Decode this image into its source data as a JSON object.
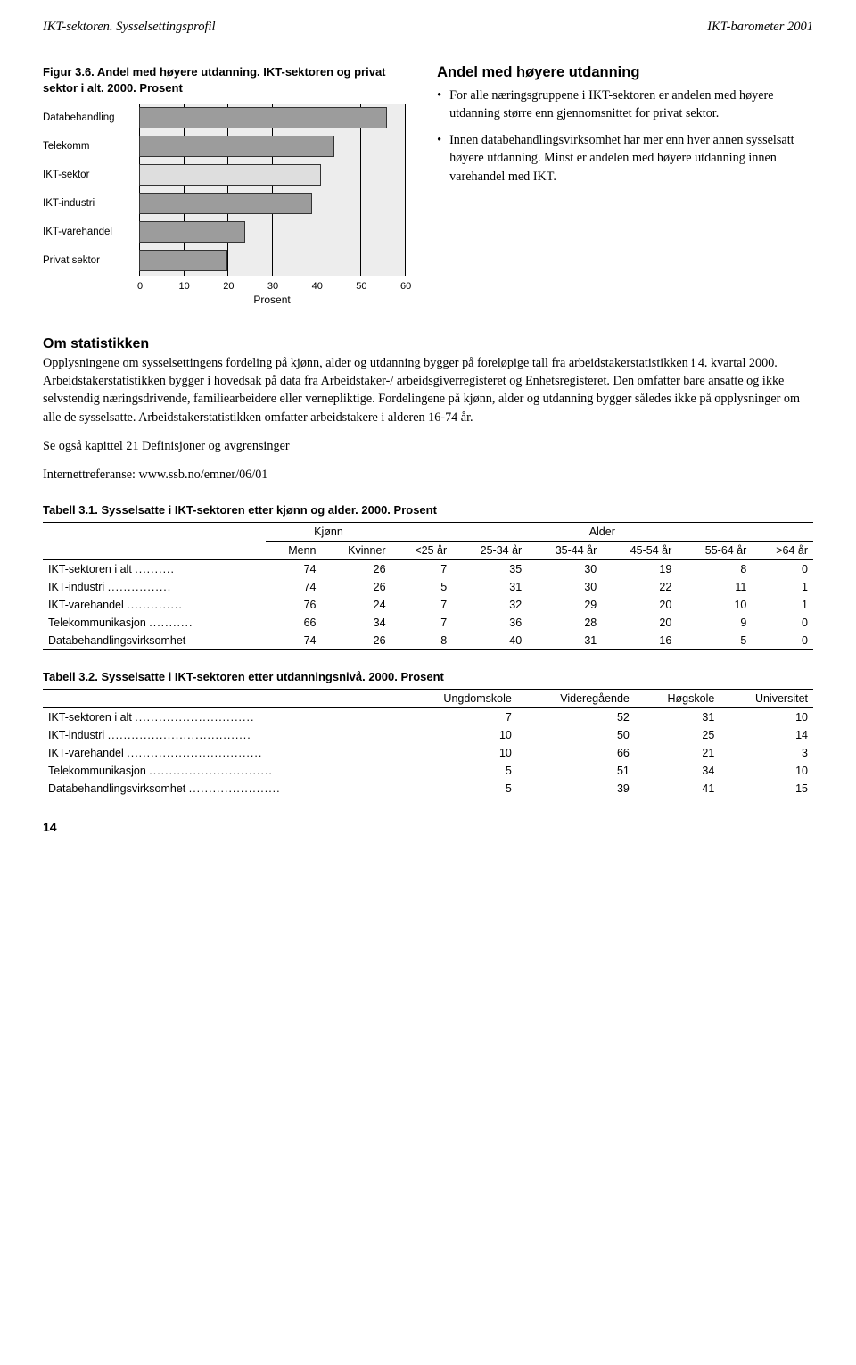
{
  "header": {
    "left": "IKT-sektoren. Sysselsettingsprofil",
    "right": "IKT-barometer 2001"
  },
  "figure": {
    "caption_bold": "Figur 3.6. Andel med høyere utdanning. IKT-sektoren og privat sektor i alt. 2000. Prosent",
    "axis_label": "Prosent",
    "xmax": 60,
    "xtick_step": 10,
    "background_color": "#ededed",
    "tick_color": "#000000",
    "bar_border": "#333333",
    "bars": [
      {
        "label": "Databehandling",
        "value": 56,
        "color": "#9c9c9c"
      },
      {
        "label": "Telekomm",
        "value": 44,
        "color": "#9c9c9c"
      },
      {
        "label": "IKT-sektor",
        "value": 41,
        "color": "#dedede"
      },
      {
        "label": "IKT-industri",
        "value": 39,
        "color": "#9c9c9c"
      },
      {
        "label": "IKT-varehandel",
        "value": 24,
        "color": "#9c9c9c"
      },
      {
        "label": "Privat sektor",
        "value": 20,
        "color": "#9c9c9c"
      }
    ]
  },
  "right_block": {
    "heading": "Andel med høyere utdanning",
    "bullets": [
      "For alle næringsgruppene i IKT-sektoren er andelen med høyere utdanning større enn gjennomsnittet for privat sektor.",
      "Innen databehandlingsvirksomhet har mer enn hver annen sysselsatt høyere utdanning. Minst er andelen med høyere utdanning innen varehandel med IKT."
    ]
  },
  "om": {
    "heading": "Om statistikken",
    "p1": "Opplysningene om sysselsettingens fordeling på kjønn, alder og utdanning bygger på foreløpige tall fra arbeidstakerstatistikken i 4. kvartal 2000. Arbeidstakerstatistikken bygger i hovedsak på data fra Arbeidstaker-/ arbeidsgiverregisteret og Enhetsregisteret. Den omfatter bare ansatte og ikke selvstendig næringsdrivende, familiearbeidere eller vernepliktige. Fordelingene på kjønn, alder og utdanning bygger således ikke på opplysninger om alle de sysselsatte. Arbeidstakerstatistikken omfatter arbeidstakere i alderen 16-74 år.",
    "p2": "Se også kapittel 21 Definisjoner og avgrensinger",
    "p3": "Internettreferanse: www.ssb.no/emner/06/01"
  },
  "table1": {
    "title": "Tabell 3.1. Sysselsatte i IKT-sektoren etter kjønn og alder. 2000. Prosent",
    "group_heads": [
      "Kjønn",
      "Alder"
    ],
    "cols": [
      "Menn",
      "Kvinner",
      "<25 år",
      "25-34 år",
      "35-44 år",
      "45-54 år",
      "55-64 år",
      ">64 år"
    ],
    "rows": [
      {
        "label": "IKT-sektoren i alt",
        "dots": true,
        "v": [
          74,
          26,
          7,
          35,
          30,
          19,
          8,
          0
        ]
      },
      {
        "label": "IKT-industri",
        "dots": true,
        "v": [
          74,
          26,
          5,
          31,
          30,
          22,
          11,
          1
        ]
      },
      {
        "label": "IKT-varehandel",
        "dots": true,
        "v": [
          76,
          24,
          7,
          32,
          29,
          20,
          10,
          1
        ]
      },
      {
        "label": "Telekommunikasjon",
        "dots": true,
        "v": [
          66,
          34,
          7,
          36,
          28,
          20,
          9,
          0
        ]
      },
      {
        "label": "Databehandlingsvirksomhet",
        "dots": false,
        "v": [
          74,
          26,
          8,
          40,
          31,
          16,
          5,
          0
        ]
      }
    ]
  },
  "table2": {
    "title": "Tabell 3.2. Sysselsatte i IKT-sektoren etter utdanningsnivå. 2000. Prosent",
    "cols": [
      "Ungdomskole",
      "Videregående",
      "Høgskole",
      "Universitet"
    ],
    "rows": [
      {
        "label": "IKT-sektoren i alt",
        "dots": true,
        "v": [
          7,
          52,
          31,
          10
        ]
      },
      {
        "label": "IKT-industri",
        "dots": true,
        "v": [
          10,
          50,
          25,
          14
        ]
      },
      {
        "label": "IKT-varehandel",
        "dots": true,
        "v": [
          10,
          66,
          21,
          3
        ]
      },
      {
        "label": "Telekommunikasjon",
        "dots": true,
        "v": [
          5,
          51,
          34,
          10
        ]
      },
      {
        "label": "Databehandlingsvirksomhet",
        "dots": true,
        "v": [
          5,
          39,
          41,
          15
        ]
      }
    ]
  },
  "page_number": "14"
}
